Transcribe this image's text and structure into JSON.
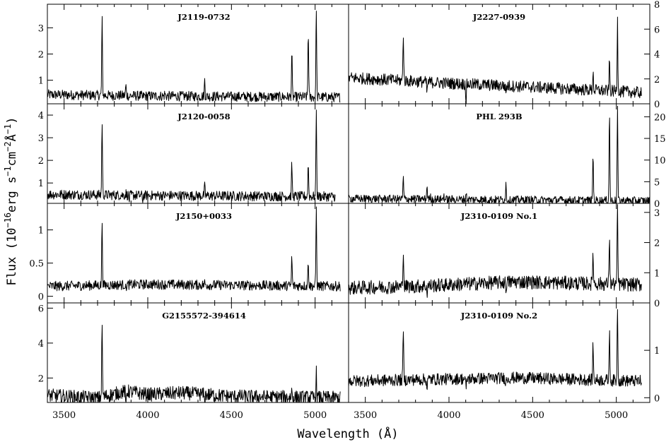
{
  "chart_data": {
    "type": "line",
    "xlabel": "Wavelength (Å)",
    "ylabel_parts": [
      "Flux (10",
      "−16",
      "erg s",
      "−1",
      "cm",
      "−2",
      "Å",
      "−1",
      ")"
    ],
    "xlim": [
      3400,
      5200
    ],
    "xticks": [
      3500,
      4000,
      4500,
      5000
    ],
    "panels": [
      {
        "name": "J2119-0732",
        "col": 0,
        "row": 0,
        "ylim": [
          0.1,
          3.9
        ],
        "yticks": [
          1,
          2,
          3
        ],
        "yticklabels": [
          "1",
          "2",
          "3"
        ],
        "xmax": 5150,
        "continuum": [
          [
            3400,
            0.45
          ],
          [
            4000,
            0.4
          ],
          [
            5150,
            0.35
          ]
        ],
        "noise": 0.05,
        "lines": [
          [
            3727,
            3.35
          ],
          [
            3869,
            0.8
          ],
          [
            3889,
            0.35
          ],
          [
            3969,
            0.3
          ],
          [
            4102,
            0.5
          ],
          [
            4340,
            1.0
          ],
          [
            4861,
            2.1
          ],
          [
            4959,
            2.95
          ],
          [
            5007,
            3.9
          ]
        ]
      },
      {
        "name": "J2120-0058",
        "col": 0,
        "row": 1,
        "ylim": [
          0.1,
          4.5
        ],
        "yticks": [
          1,
          2,
          3,
          4
        ],
        "yticklabels": [
          "1",
          "2",
          "3",
          "4"
        ],
        "xmax": 5120,
        "continuum": [
          [
            3400,
            0.5
          ],
          [
            4000,
            0.45
          ],
          [
            5120,
            0.4
          ]
        ],
        "noise": 0.05,
        "lines": [
          [
            3727,
            3.8
          ],
          [
            3869,
            0.55
          ],
          [
            3889,
            0.25
          ],
          [
            3969,
            0.25
          ],
          [
            4102,
            0.45
          ],
          [
            4340,
            0.85
          ],
          [
            4861,
            1.85
          ],
          [
            4959,
            1.9
          ],
          [
            5007,
            4.5
          ]
        ]
      },
      {
        "name": "J2150+0033",
        "col": 0,
        "row": 2,
        "ylim": [
          -0.1,
          1.4
        ],
        "yticks": [
          0,
          0.5,
          1
        ],
        "yticklabels": [
          "0",
          "0.5",
          "1"
        ],
        "xmax": 5150,
        "continuum": [
          [
            3400,
            0.15
          ],
          [
            4000,
            0.18
          ],
          [
            5150,
            0.15
          ]
        ],
        "noise": 0.05,
        "lines": [
          [
            3727,
            1.15
          ],
          [
            3869,
            0.1
          ],
          [
            4340,
            0.2
          ],
          [
            4861,
            0.6
          ],
          [
            4959,
            0.55
          ],
          [
            5007,
            1.4
          ]
        ]
      },
      {
        "name": "G2155572-394614",
        "col": 0,
        "row": 3,
        "ylim": [
          0.6,
          6.3
        ],
        "yticks": [
          2,
          4,
          6
        ],
        "yticklabels": [
          "2",
          "4",
          "6"
        ],
        "xmax": 5150,
        "continuum": [
          [
            3400,
            1.0
          ],
          [
            3700,
            0.85
          ],
          [
            3870,
            1.25
          ],
          [
            4000,
            1.05
          ],
          [
            4200,
            1.15
          ],
          [
            4500,
            0.95
          ],
          [
            5150,
            0.85
          ]
        ],
        "noise": 0.07,
        "lines": [
          [
            3727,
            5.1
          ],
          [
            3869,
            0.4
          ],
          [
            4340,
            0.4
          ],
          [
            4861,
            1.3
          ],
          [
            4959,
            0.9
          ],
          [
            5007,
            2.35
          ]
        ]
      },
      {
        "name": "J2227-0939",
        "col": 1,
        "row": 0,
        "ylim": [
          0,
          8
        ],
        "yticks": [
          0,
          2,
          4,
          6,
          8
        ],
        "yticklabels": [
          "0",
          "2",
          "4",
          "6",
          "8"
        ],
        "xmax": 5150,
        "continuum": [
          [
            3400,
            2.1
          ],
          [
            4000,
            1.65
          ],
          [
            4500,
            1.35
          ],
          [
            5150,
            0.9
          ]
        ],
        "noise": 0.06,
        "lines": [
          [
            3727,
            5.8
          ],
          [
            3869,
            0.9
          ],
          [
            4102,
            0.3
          ],
          [
            4340,
            0.9
          ],
          [
            4861,
            2.6
          ],
          [
            4959,
            3.5
          ],
          [
            5007,
            6.9
          ]
        ]
      },
      {
        "name": "PHL 293B",
        "col": 1,
        "row": 1,
        "ylim": [
          0,
          23
        ],
        "yticks": [
          0,
          5,
          10,
          15,
          20
        ],
        "yticklabels": [
          "0",
          "5",
          "10",
          "15",
          "20"
        ],
        "xmax": 5200,
        "continuum": [
          [
            3400,
            1.1
          ],
          [
            4500,
            0.8
          ],
          [
            5200,
            0.6
          ]
        ],
        "noise": 0.04,
        "lines": [
          [
            3727,
            6.0
          ],
          [
            3869,
            4.2
          ],
          [
            3889,
            1.5
          ],
          [
            3969,
            2.0
          ],
          [
            4102,
            2.5
          ],
          [
            4340,
            4.5
          ],
          [
            4363,
            0.6
          ],
          [
            4861,
            11.8
          ],
          [
            4959,
            21.5
          ],
          [
            5007,
            23.0
          ]
        ]
      },
      {
        "name": "J2310-0109 No.1",
        "col": 1,
        "row": 2,
        "ylim": [
          0,
          3.3
        ],
        "yticks": [
          0,
          1,
          2,
          3
        ],
        "yticklabels": [
          "0",
          "1",
          "2",
          "3"
        ],
        "xmax": 5150,
        "continuum": [
          [
            3400,
            0.5
          ],
          [
            3800,
            0.55
          ],
          [
            4400,
            0.7
          ],
          [
            5150,
            0.6
          ]
        ],
        "noise": 0.07,
        "lines": [
          [
            3727,
            1.85
          ],
          [
            3869,
            0.35
          ],
          [
            4340,
            0.45
          ],
          [
            4861,
            1.75
          ],
          [
            4959,
            2.3
          ],
          [
            5007,
            3.3
          ]
        ]
      },
      {
        "name": "J2310-0109 No.2",
        "col": 1,
        "row": 3,
        "ylim": [
          -0.1,
          2.0
        ],
        "yticks": [
          0,
          1
        ],
        "yticklabels": [
          "0",
          "1"
        ],
        "xmax": 5150,
        "continuum": [
          [
            3400,
            0.35
          ],
          [
            3800,
            0.38
          ],
          [
            4400,
            0.42
          ],
          [
            5150,
            0.35
          ]
        ],
        "noise": 0.06,
        "lines": [
          [
            3727,
            1.45
          ],
          [
            3869,
            0.2
          ],
          [
            4102,
            0.15
          ],
          [
            4340,
            0.3
          ],
          [
            4861,
            1.15
          ],
          [
            4959,
            1.4
          ],
          [
            5007,
            2.0
          ]
        ]
      }
    ]
  }
}
